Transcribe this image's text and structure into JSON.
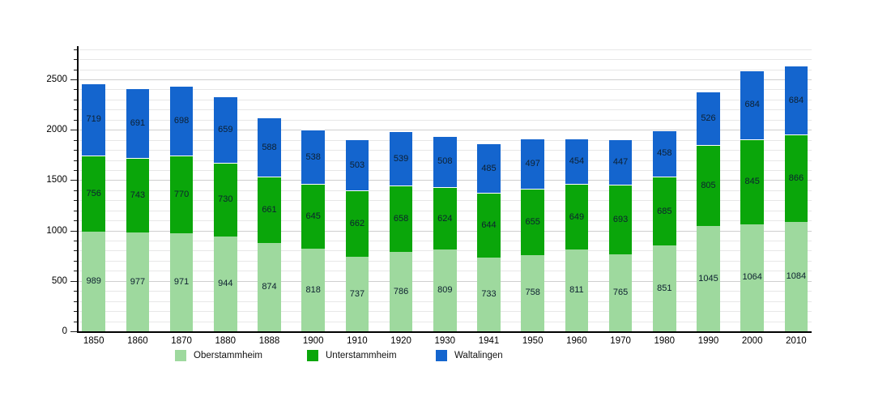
{
  "chart_data": {
    "type": "bar",
    "stacked": true,
    "title": "",
    "xlabel": "",
    "ylabel": "",
    "categories": [
      "1850",
      "1860",
      "1870",
      "1880",
      "1888",
      "1900",
      "1910",
      "1920",
      "1930",
      "1941",
      "1950",
      "1960",
      "1970",
      "1980",
      "1990",
      "2000",
      "2010"
    ],
    "series": [
      {
        "name": "Oberstammheim",
        "color": "#9ed99e",
        "values": [
          989,
          977,
          971,
          944,
          874,
          818,
          737,
          786,
          809,
          733,
          758,
          811,
          765,
          851,
          1045,
          1064,
          1084
        ]
      },
      {
        "name": "Unterstammheim",
        "color": "#0aa60a",
        "values": [
          756,
          743,
          770,
          730,
          661,
          645,
          662,
          658,
          624,
          644,
          655,
          649,
          693,
          685,
          805,
          845,
          866
        ]
      },
      {
        "name": "Waltalingen",
        "color": "#1465ce",
        "values": [
          719,
          691,
          698,
          659,
          588,
          538,
          503,
          539,
          508,
          485,
          497,
          454,
          447,
          458,
          526,
          684,
          684
        ]
      }
    ],
    "ylim": [
      0,
      2830
    ],
    "yticks": [
      0,
      500,
      1000,
      1500,
      2000,
      2500
    ],
    "minor_grid_step": 100,
    "grid": true,
    "legend_position": "bottom",
    "value_labels": "inside-center"
  }
}
